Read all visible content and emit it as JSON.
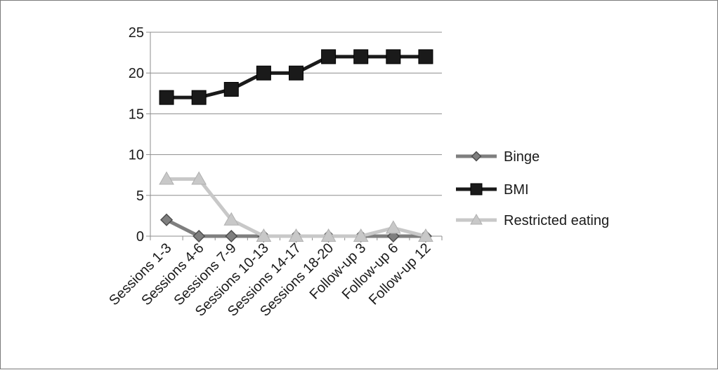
{
  "chart_data": {
    "type": "line",
    "categories": [
      "Sessions 1-3",
      "Sessions 4-6",
      "Sessions 7-9",
      "Sessions 10-13",
      "Sessions 14-17",
      "Sessions 18-20",
      "Follow-up 3",
      "Follow-up 6",
      "Follow-up 12"
    ],
    "series": [
      {
        "name": "Binge",
        "values": [
          2,
          0,
          0,
          0,
          0,
          0,
          0,
          0,
          0
        ],
        "color": "#7f7f7f",
        "marker": "diamond"
      },
      {
        "name": "BMI",
        "values": [
          17,
          17,
          18,
          20,
          20,
          22,
          22,
          22,
          22
        ],
        "color": "#1a1a1a",
        "marker": "square"
      },
      {
        "name": "Restricted eating",
        "values": [
          7,
          7,
          2,
          0,
          0,
          0,
          0,
          1,
          0
        ],
        "color": "#c8c8c8",
        "marker": "triangle"
      }
    ],
    "y_ticks": [
      "0",
      "5",
      "10",
      "15",
      "20",
      "25"
    ],
    "ylim": [
      0,
      25
    ],
    "grid": true,
    "legend_position": "right"
  }
}
